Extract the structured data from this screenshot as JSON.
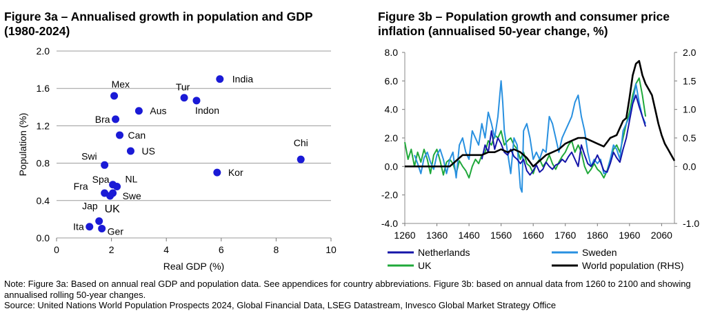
{
  "figure_3a": {
    "title": "Figure 3a – Annualised growth in population and GDP (1980-2024)"
  },
  "figure_3b": {
    "title": "Figure 3b – Population growth and consumer price inflation (annualised 50-year change, %)"
  },
  "notes": {
    "note": "Note: Figure 3a: Based on annual real GDP and population data. See appendices for country abbreviations. Figure 3b: based on annual data from 1260 to 2100 and showing annualised rolling 50-year changes.",
    "source": "Source: United Nations World Population Prospects 2024, Global Financial Data, LSEG Datastream, Invesco Global Market Strategy Office"
  },
  "chart_data": [
    {
      "type": "scatter",
      "title": "Figure 3a – Annualised growth in population and GDP (1980-2024)",
      "xlabel": "Real GDP (%)",
      "ylabel": "Population (%)",
      "xlim": [
        0,
        10
      ],
      "ylim": [
        0.0,
        2.0
      ],
      "xticks": [
        "0",
        "2",
        "4",
        "6",
        "8",
        "10"
      ],
      "yticks": [
        "0.0",
        "0.4",
        "0.8",
        "1.2",
        "1.6",
        "2.0"
      ],
      "grid": "horizontal",
      "marker_color": "#1a1ad6",
      "points": [
        {
          "label": "India",
          "x": 5.95,
          "y": 1.7
        },
        {
          "label": "Mex",
          "x": 2.1,
          "y": 1.52
        },
        {
          "label": "Tur",
          "x": 4.65,
          "y": 1.5
        },
        {
          "label": "Indon",
          "x": 5.1,
          "y": 1.47
        },
        {
          "label": "Aus",
          "x": 3.0,
          "y": 1.36
        },
        {
          "label": "Bra",
          "x": 2.15,
          "y": 1.27
        },
        {
          "label": "Can",
          "x": 2.3,
          "y": 1.1
        },
        {
          "label": "US",
          "x": 2.7,
          "y": 0.93
        },
        {
          "label": "Chi",
          "x": 8.9,
          "y": 0.84
        },
        {
          "label": "Swi",
          "x": 1.75,
          "y": 0.78
        },
        {
          "label": "Kor",
          "x": 5.85,
          "y": 0.7
        },
        {
          "label": "Spa",
          "x": 2.05,
          "y": 0.57
        },
        {
          "label": "NL",
          "x": 2.2,
          "y": 0.55
        },
        {
          "label": "Fra",
          "x": 1.75,
          "y": 0.48
        },
        {
          "label": "Swe",
          "x": 2.05,
          "y": 0.48
        },
        {
          "label": "UK",
          "x": 1.95,
          "y": 0.45
        },
        {
          "label": "Jap",
          "x": 1.55,
          "y": 0.18
        },
        {
          "label": "Ita",
          "x": 1.2,
          "y": 0.12
        },
        {
          "label": "Ger",
          "x": 1.65,
          "y": 0.1
        }
      ]
    },
    {
      "type": "line",
      "title": "Figure 3b – Population growth and consumer price inflation (annualised 50-year change, %)",
      "xlim": [
        1260,
        2100
      ],
      "ylim_left": [
        -4.0,
        8.0
      ],
      "ylim_right": [
        -1.0,
        2.0
      ],
      "xticks": [
        "1260",
        "1360",
        "1460",
        "1560",
        "1660",
        "1760",
        "1860",
        "1960",
        "2060"
      ],
      "yticks_left": [
        "-4.0",
        "-2.0",
        "0.0",
        "2.0",
        "4.0",
        "6.0",
        "8.0"
      ],
      "yticks_right": [
        "-1.0",
        "0.0",
        "0.5",
        "1.0",
        "1.5",
        "2.0"
      ],
      "series": [
        {
          "name": "Netherlands",
          "axis": "left",
          "color": "#1414a8",
          "x": [
            1500,
            1510,
            1520,
            1530,
            1540,
            1550,
            1560,
            1570,
            1580,
            1590,
            1600,
            1610,
            1620,
            1630,
            1640,
            1650,
            1660,
            1670,
            1680,
            1690,
            1700,
            1710,
            1720,
            1730,
            1740,
            1750,
            1760,
            1770,
            1780,
            1790,
            1800,
            1810,
            1820,
            1830,
            1840,
            1850,
            1860,
            1870,
            1880,
            1890,
            1900,
            1910,
            1920,
            1930,
            1940,
            1950,
            1960,
            1970,
            1980,
            1990,
            2000,
            2010
          ],
          "y": [
            0.5,
            1.5,
            1.0,
            2.5,
            1.2,
            2.0,
            1.6,
            1.0,
            0.8,
            1.2,
            0.7,
            0.5,
            0.2,
            0.5,
            -0.3,
            -0.6,
            -0.3,
            0.1,
            -0.4,
            -0.2,
            0.3,
            0.0,
            -0.2,
            0.1,
            0.2,
            0.5,
            0.3,
            0.7,
            1.0,
            0.5,
            0.0,
            1.5,
            0.8,
            0.2,
            0.0,
            0.3,
            0.8,
            0.3,
            -0.3,
            -0.4,
            0.2,
            1.0,
            0.6,
            0.3,
            1.2,
            2.0,
            3.2,
            4.4,
            5.0,
            4.2,
            3.5,
            2.8
          ]
        },
        {
          "name": "Sweden",
          "axis": "left",
          "color": "#2890e0",
          "x": [
            1290,
            1300,
            1310,
            1320,
            1330,
            1340,
            1350,
            1360,
            1370,
            1380,
            1390,
            1400,
            1410,
            1420,
            1430,
            1440,
            1450,
            1460,
            1470,
            1480,
            1490,
            1500,
            1510,
            1520,
            1530,
            1540,
            1550,
            1560,
            1565,
            1570,
            1580,
            1590,
            1600,
            1610,
            1620,
            1625,
            1630,
            1640,
            1650,
            1660,
            1670,
            1680,
            1690,
            1700,
            1710,
            1720,
            1730,
            1740,
            1750,
            1760,
            1770,
            1780,
            1790,
            1800,
            1810,
            1820,
            1830,
            1840,
            1850,
            1860,
            1870,
            1880,
            1890,
            1900,
            1910,
            1920,
            1930,
            1940,
            1950,
            1960,
            1970,
            1980,
            1990,
            2000,
            2010
          ],
          "y": [
            0.8,
            0.2,
            -0.5,
            0.6,
            1.0,
            0.3,
            -0.2,
            0.8,
            1.2,
            0.5,
            -0.5,
            0.5,
            1.0,
            -0.8,
            1.5,
            2.0,
            1.0,
            0.5,
            2.5,
            2.0,
            1.5,
            3.0,
            2.0,
            3.8,
            3.0,
            2.0,
            3.5,
            6.0,
            4.5,
            2.5,
            1.0,
            -0.5,
            2.0,
            1.5,
            -1.5,
            -1.8,
            2.5,
            3.0,
            2.0,
            0.5,
            1.0,
            0.5,
            1.2,
            1.0,
            3.5,
            3.0,
            2.0,
            1.0,
            2.0,
            2.5,
            3.0,
            3.5,
            4.5,
            5.0,
            3.5,
            2.5,
            1.0,
            0.0,
            0.5,
            0.2,
            0.5,
            -0.5,
            -0.4,
            0.5,
            1.5,
            1.2,
            0.5,
            2.5,
            3.0,
            3.5,
            4.5,
            5.8,
            4.5,
            3.5,
            3.0
          ]
        },
        {
          "name": "UK",
          "axis": "left",
          "color": "#1fa83a",
          "x": [
            1260,
            1270,
            1280,
            1290,
            1300,
            1310,
            1320,
            1330,
            1340,
            1350,
            1360,
            1370,
            1380,
            1390,
            1400,
            1410,
            1420,
            1430,
            1440,
            1450,
            1460,
            1470,
            1480,
            1490,
            1500,
            1510,
            1520,
            1530,
            1540,
            1550,
            1560,
            1570,
            1580,
            1590,
            1600,
            1610,
            1620,
            1630,
            1640,
            1650,
            1660,
            1670,
            1680,
            1690,
            1700,
            1710,
            1720,
            1730,
            1740,
            1750,
            1760,
            1770,
            1780,
            1790,
            1800,
            1810,
            1820,
            1830,
            1840,
            1850,
            1860,
            1870,
            1880,
            1890,
            1900,
            1910,
            1920,
            1930,
            1940,
            1950,
            1960,
            1970,
            1980,
            1990,
            2000,
            2010
          ],
          "y": [
            1.7,
            0.5,
            1.2,
            0.0,
            1.0,
            0.3,
            1.2,
            0.5,
            -0.5,
            0.8,
            1.2,
            0.4,
            -0.6,
            0.3,
            0.5,
            0.2,
            -0.5,
            0.4,
            0.0,
            -0.3,
            -0.8,
            0.0,
            0.5,
            0.2,
            0.8,
            1.0,
            1.8,
            1.5,
            2.2,
            2.0,
            2.5,
            1.5,
            1.8,
            2.0,
            1.5,
            1.2,
            0.5,
            1.0,
            0.2,
            0.0,
            -0.5,
            0.2,
            0.5,
            0.0,
            0.3,
            0.8,
            0.2,
            -0.2,
            0.3,
            0.7,
            1.0,
            1.5,
            1.8,
            1.0,
            1.5,
            1.0,
            0.0,
            -0.5,
            -0.2,
            0.2,
            -0.2,
            -0.4,
            -0.8,
            -0.3,
            0.5,
            1.2,
            1.5,
            1.0,
            2.0,
            3.0,
            3.8,
            5.0,
            5.8,
            6.2,
            5.0,
            3.5
          ]
        },
        {
          "name": "World population (RHS)",
          "axis": "right",
          "color": "#000000",
          "x": [
            1260,
            1280,
            1300,
            1320,
            1340,
            1360,
            1380,
            1400,
            1420,
            1440,
            1460,
            1480,
            1500,
            1520,
            1540,
            1560,
            1580,
            1600,
            1620,
            1640,
            1660,
            1680,
            1700,
            1720,
            1740,
            1760,
            1780,
            1800,
            1820,
            1840,
            1860,
            1880,
            1900,
            1920,
            1940,
            1950,
            1960,
            1970,
            1980,
            1990,
            2000,
            2010,
            2020,
            2030,
            2040,
            2050,
            2060,
            2070,
            2080,
            2090,
            2100
          ],
          "y": [
            0.0,
            0.0,
            0.0,
            0.0,
            0.0,
            0.0,
            0.0,
            0.0,
            0.1,
            0.2,
            0.2,
            0.2,
            0.2,
            0.25,
            0.25,
            0.3,
            0.25,
            0.3,
            0.25,
            0.15,
            0.0,
            0.1,
            0.2,
            0.25,
            0.3,
            0.4,
            0.45,
            0.5,
            0.5,
            0.45,
            0.4,
            0.35,
            0.5,
            0.55,
            0.8,
            0.85,
            1.2,
            1.6,
            1.8,
            1.85,
            1.6,
            1.45,
            1.35,
            1.25,
            1.0,
            0.75,
            0.55,
            0.4,
            0.3,
            0.2,
            0.1
          ]
        }
      ]
    }
  ]
}
